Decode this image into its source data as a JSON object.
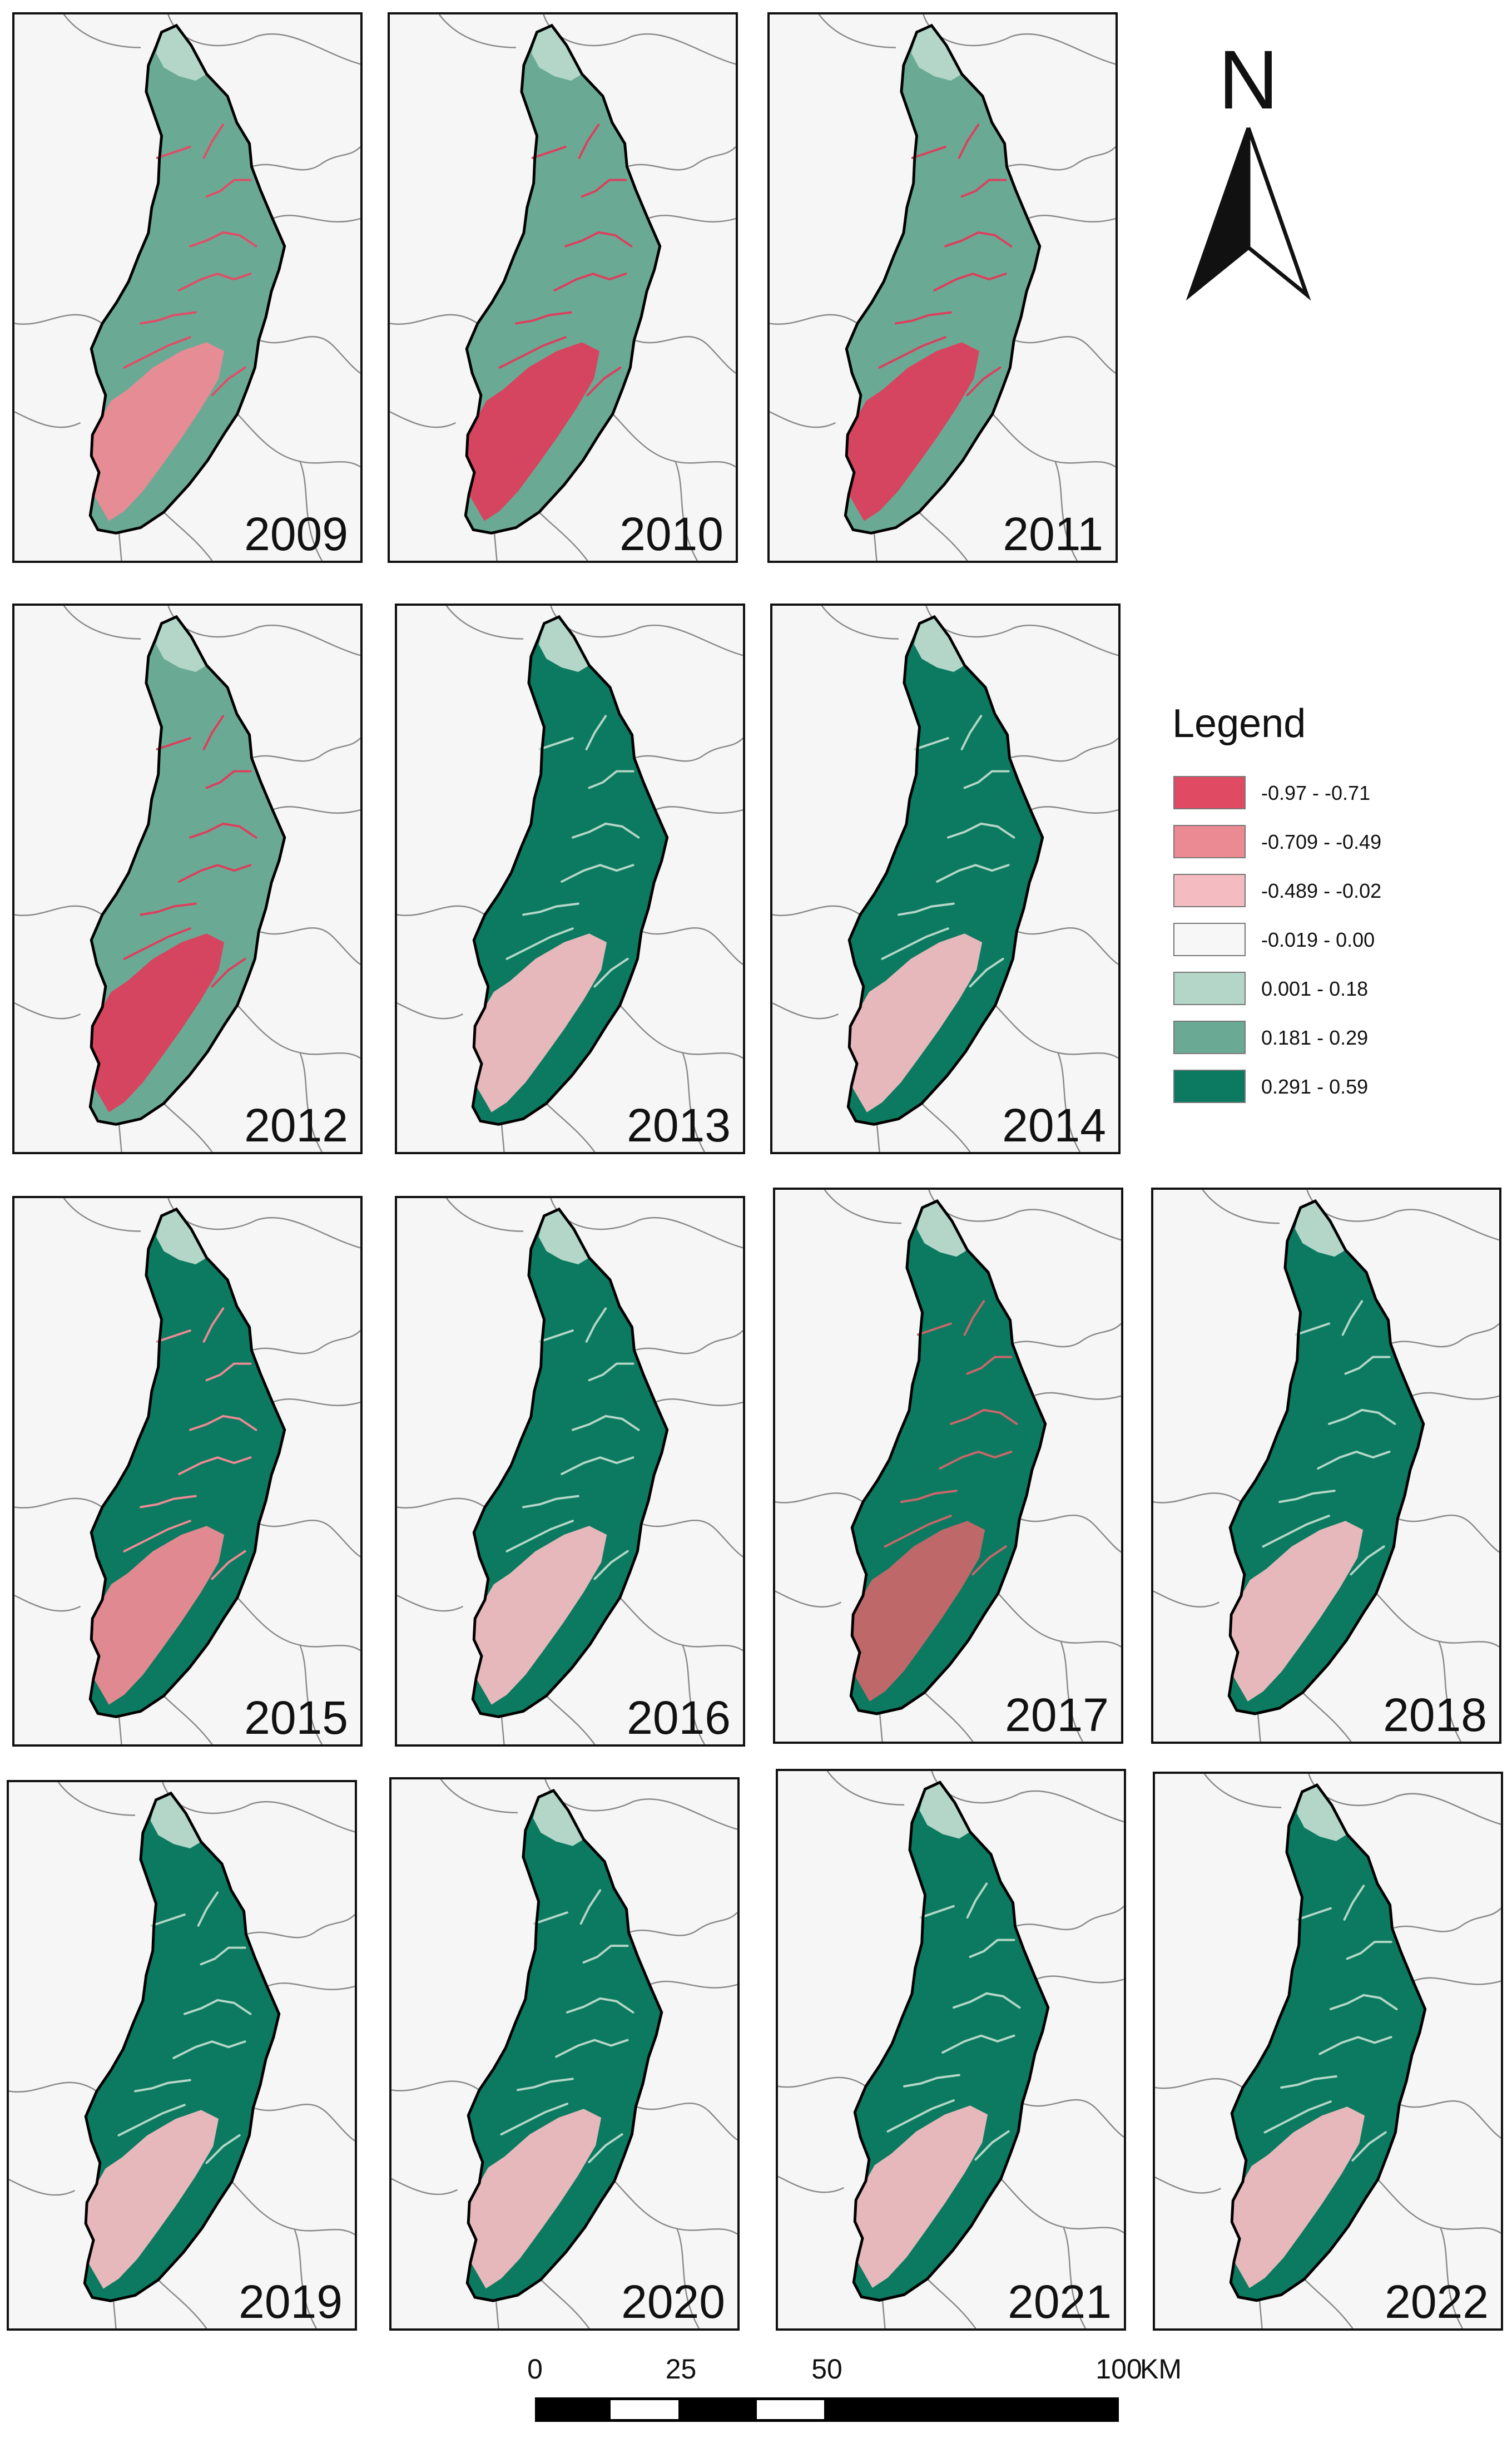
{
  "maps": [
    {
      "year": "2009",
      "scheme": "y2009"
    },
    {
      "year": "2010",
      "scheme": "y2010"
    },
    {
      "year": "2011",
      "scheme": "y2011"
    },
    {
      "year": "2012",
      "scheme": "y2012"
    },
    {
      "year": "2013",
      "scheme": "recovered"
    },
    {
      "year": "2014",
      "scheme": "recovered"
    },
    {
      "year": "2015",
      "scheme": "y2015"
    },
    {
      "year": "2016",
      "scheme": "recovered"
    },
    {
      "year": "2017",
      "scheme": "y2017"
    },
    {
      "year": "2018",
      "scheme": "recovered"
    },
    {
      "year": "2019",
      "scheme": "recovered"
    },
    {
      "year": "2020",
      "scheme": "recovered"
    },
    {
      "year": "2021",
      "scheme": "recovered"
    },
    {
      "year": "2022",
      "scheme": "recovered"
    }
  ],
  "schemes": {
    "y2009": {
      "body": "#6aaa95",
      "south": "#ec8a93",
      "streams": "#e04d66",
      "north": "#b3d6c8"
    },
    "y2010": {
      "body": "#6aaa95",
      "south": "#dc3f5c",
      "streams": "#dc3f5c",
      "north": "#b3d6c8"
    },
    "y2011": {
      "body": "#6aaa95",
      "south": "#dc3f5c",
      "streams": "#dc3f5c",
      "north": "#b3d6c8"
    },
    "y2012": {
      "body": "#6aaa95",
      "south": "#dc3f5c",
      "streams": "#dc3f5c",
      "north": "#b3d6c8"
    },
    "recovered": {
      "body": "#0c7a60",
      "south": "#f2bcc0",
      "streams": "#b3d6c8",
      "north": "#b3d6c8"
    },
    "y2015": {
      "body": "#0c7a60",
      "south": "#ec8a93",
      "streams": "#ec8a93",
      "north": "#b3d6c8"
    },
    "y2017": {
      "body": "#0c7a60",
      "south": "#c9676a",
      "streams": "#c9676a",
      "north": "#b3d6c8"
    }
  },
  "north_arrow": {
    "label": "N"
  },
  "legend": {
    "title": "Legend",
    "items": [
      {
        "label": "-0.97 -  -0.71",
        "color": "#e04a62"
      },
      {
        "label": "-0.709 - -0.49",
        "color": "#ec8a93"
      },
      {
        "label": "-0.489 - -0.02",
        "color": "#f4bcc1"
      },
      {
        "label": "-0.019 - 0.00",
        "color": "#f7f7f7"
      },
      {
        "label": "0.001 - 0.18",
        "color": "#b3d6c8"
      },
      {
        "label": "0.181 - 0.29",
        "color": "#6aaa95"
      },
      {
        "label": "0.291 - 0.59",
        "color": "#0c7a60"
      }
    ]
  },
  "scale_bar": {
    "ticks": [
      "0",
      "25",
      "50",
      "100"
    ],
    "tick_values": [
      0,
      25,
      50,
      100
    ],
    "unit": "KM"
  }
}
